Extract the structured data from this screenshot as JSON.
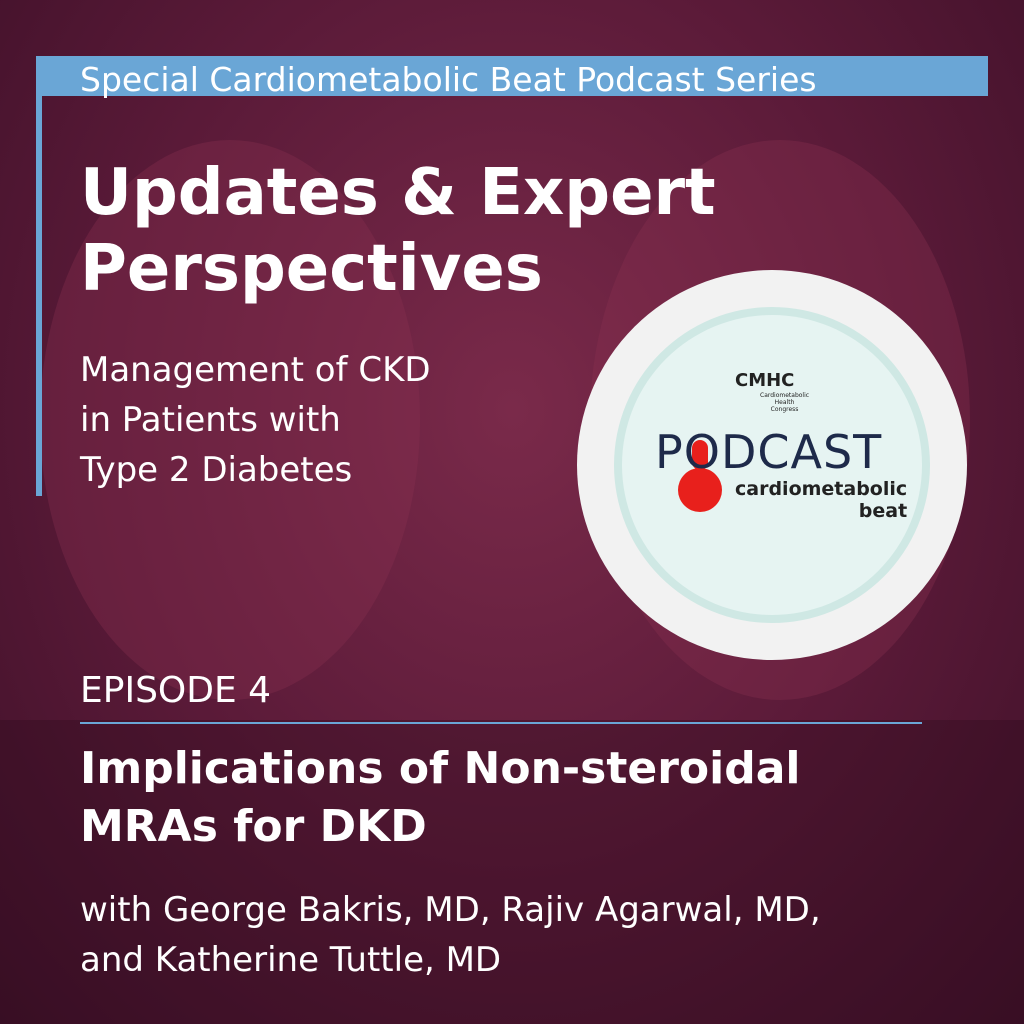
{
  "banner": "Special Cardiometabolic Beat Podcast Series",
  "title_lines": [
    "Updates & Expert",
    "Perspectives"
  ],
  "subtitle_lines": [
    "Management of CKD",
    "in Patients with",
    "Type 2 Diabetes"
  ],
  "logo": {
    "org": "CMHC",
    "org_full": [
      "Cardiometabolic",
      "Health",
      "Congress"
    ],
    "podcast": "PODCAST",
    "brand_lines": [
      "cardiometabolic",
      "beat"
    ]
  },
  "episode": "EPISODE 4",
  "episode_title_lines": [
    "Implications of Non-steroidal",
    "MRAs for DKD"
  ],
  "guests_lines": [
    "with George Bakris, MD, Rajiv Agarwal, MD,",
    "and Katherine Tuttle, MD"
  ]
}
